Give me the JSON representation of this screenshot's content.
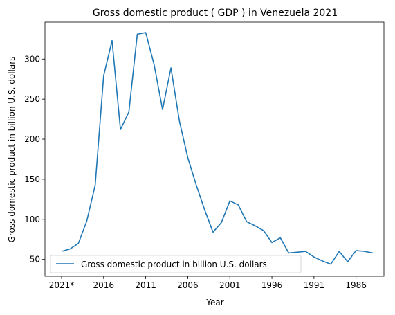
{
  "chart_data": {
    "type": "line",
    "title": "Gross domestic product ( GDP ) in Venezuela 2021",
    "xlabel": "Year",
    "ylabel": "Gross domestic product in billion U.S. dollars",
    "x": [
      "2021*",
      "2020",
      "2019",
      "2018",
      "2017",
      "2016",
      "2015",
      "2014",
      "2013",
      "2012",
      "2011",
      "2010",
      "2009",
      "2008",
      "2007",
      "2006",
      "2005",
      "2004",
      "2003",
      "2002",
      "2001",
      "2000",
      "1999",
      "1998",
      "1997",
      "1996",
      "1995",
      "1994",
      "1993",
      "1992",
      "1991",
      "1990",
      "1989",
      "1988",
      "1987",
      "1986",
      "1985",
      "1984"
    ],
    "xticks": [
      "2021*",
      "2016",
      "2011",
      "2006",
      "2001",
      "1996",
      "1991",
      "1986"
    ],
    "yticks": [
      50,
      100,
      150,
      200,
      250,
      300
    ],
    "ylim": [
      29,
      346
    ],
    "grid": false,
    "legend_position": "lower-left",
    "series": [
      {
        "name": "Gross domestic product in billion U.S. dollars",
        "color": "#1f77b4",
        "values": [
          60,
          63,
          70,
          98,
          143,
          279,
          323,
          212,
          234,
          331,
          333,
          293,
          237,
          289,
          223,
          177,
          143,
          112,
          84,
          96,
          123,
          118,
          97,
          92,
          86,
          71,
          77,
          58,
          59,
          60,
          53,
          48,
          44,
          60,
          47,
          61,
          60,
          58
        ]
      }
    ]
  }
}
